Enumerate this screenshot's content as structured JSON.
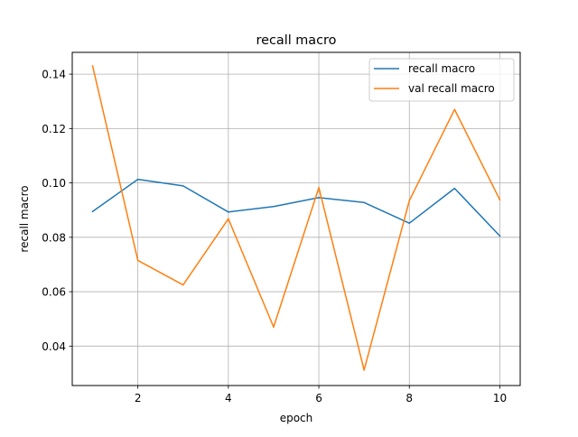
{
  "chart_data": {
    "type": "line",
    "title": "recall macro",
    "xlabel": "epoch",
    "ylabel": "recall macro",
    "x": [
      1,
      2,
      3,
      4,
      5,
      6,
      7,
      8,
      9,
      10
    ],
    "xlim": [
      0.55,
      10.45
    ],
    "ylim": [
      0.0255,
      0.148
    ],
    "xticks": [
      2,
      4,
      6,
      8,
      10
    ],
    "xtick_labels": [
      "2",
      "4",
      "6",
      "8",
      "10"
    ],
    "yticks": [
      0.04,
      0.06,
      0.08,
      0.1,
      0.12,
      0.14
    ],
    "ytick_labels": [
      "0.04",
      "0.06",
      "0.08",
      "0.10",
      "0.12",
      "0.14"
    ],
    "grid": true,
    "legend_position": "upper right",
    "series": [
      {
        "name": "recall macro",
        "color": "#1f77b4",
        "values": [
          0.0895,
          0.1013,
          0.0989,
          0.0893,
          0.0913,
          0.0946,
          0.0928,
          0.0852,
          0.098,
          0.0805
        ]
      },
      {
        "name": "val recall macro",
        "color": "#ff7f0e",
        "values": [
          0.143,
          0.0715,
          0.0625,
          0.0868,
          0.047,
          0.0983,
          0.0312,
          0.0935,
          0.127,
          0.0938
        ]
      }
    ]
  }
}
